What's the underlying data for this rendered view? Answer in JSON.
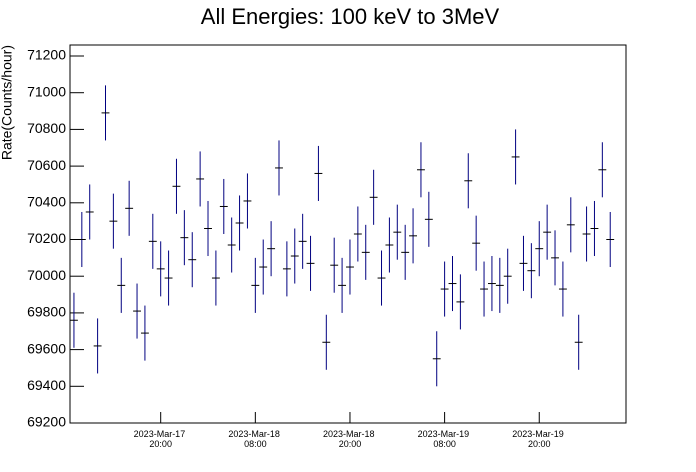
{
  "chart_data": {
    "type": "errorbar",
    "title": "All Energies:  100 keV to 3MeV",
    "ylabel": "Rate(Counts/hour)",
    "color": "#000080",
    "x": [
      "2023-03-17 09:00",
      "2023-03-17 10:00",
      "2023-03-17 11:00",
      "2023-03-17 12:00",
      "2023-03-17 13:00",
      "2023-03-17 14:00",
      "2023-03-17 15:00",
      "2023-03-17 16:00",
      "2023-03-17 17:00",
      "2023-03-17 18:00",
      "2023-03-17 19:00",
      "2023-03-17 20:00",
      "2023-03-17 21:00",
      "2023-03-17 22:00",
      "2023-03-17 23:00",
      "2023-03-18 00:00",
      "2023-03-18 01:00",
      "2023-03-18 02:00",
      "2023-03-18 03:00",
      "2023-03-18 04:00",
      "2023-03-18 05:00",
      "2023-03-18 06:00",
      "2023-03-18 07:00",
      "2023-03-18 08:00",
      "2023-03-18 09:00",
      "2023-03-18 10:00",
      "2023-03-18 11:00",
      "2023-03-18 12:00",
      "2023-03-18 13:00",
      "2023-03-18 14:00",
      "2023-03-18 15:00",
      "2023-03-18 16:00",
      "2023-03-18 17:00",
      "2023-03-18 18:00",
      "2023-03-18 19:00",
      "2023-03-18 20:00",
      "2023-03-18 21:00",
      "2023-03-18 22:00",
      "2023-03-18 23:00",
      "2023-03-19 00:00",
      "2023-03-19 01:00",
      "2023-03-19 02:00",
      "2023-03-19 03:00",
      "2023-03-19 04:00",
      "2023-03-19 05:00",
      "2023-03-19 06:00",
      "2023-03-19 07:00",
      "2023-03-19 08:00",
      "2023-03-19 09:00",
      "2023-03-19 10:00",
      "2023-03-19 11:00",
      "2023-03-19 12:00",
      "2023-03-19 13:00",
      "2023-03-19 14:00",
      "2023-03-19 15:00",
      "2023-03-19 16:00",
      "2023-03-19 17:00",
      "2023-03-19 18:00",
      "2023-03-19 19:00",
      "2023-03-19 20:00",
      "2023-03-19 21:00",
      "2023-03-19 22:00",
      "2023-03-19 23:00",
      "2023-03-20 00:00",
      "2023-03-20 01:00",
      "2023-03-20 02:00",
      "2023-03-20 03:00",
      "2023-03-20 04:00",
      "2023-03-20 05:00"
    ],
    "values": [
      69760,
      70200,
      70350,
      69620,
      70890,
      70300,
      69950,
      70370,
      69810,
      69690,
      70190,
      70040,
      69990,
      70490,
      70210,
      70090,
      70530,
      70260,
      69990,
      70380,
      70170,
      70290,
      70410,
      69950,
      70050,
      70150,
      70590,
      70040,
      70110,
      70190,
      70070,
      70560,
      69640,
      70060,
      69950,
      70050,
      70230,
      70130,
      70430,
      69990,
      70170,
      70240,
      70130,
      70220,
      70580,
      70310,
      69550,
      69930,
      69960,
      69860,
      70520,
      70180,
      69930,
      69960,
      69950,
      70000,
      70650,
      70070,
      70030,
      70150,
      70240,
      70100,
      69930,
      70280,
      69640,
      70230,
      70260,
      70580,
      70200
    ],
    "error": 150,
    "xlim": [
      "2023-03-17 08:30",
      "2023-03-20 07:00"
    ],
    "xticks": [
      {
        "value": "2023-03-17 20:00",
        "label": "2023-Mar-17 20:00"
      },
      {
        "value": "2023-03-18 08:00",
        "label": "2023-Mar-18 08:00"
      },
      {
        "value": "2023-03-18 20:00",
        "label": "2023-Mar-18 20:00"
      },
      {
        "value": "2023-03-19 08:00",
        "label": "2023-Mar-19 08:00"
      },
      {
        "value": "2023-03-19 20:00",
        "label": "2023-Mar-19 20:00"
      }
    ],
    "ylim": [
      69200,
      71260
    ],
    "yticks": [
      69200,
      69400,
      69600,
      69800,
      70000,
      70200,
      70400,
      70600,
      70800,
      71000,
      71200
    ]
  }
}
